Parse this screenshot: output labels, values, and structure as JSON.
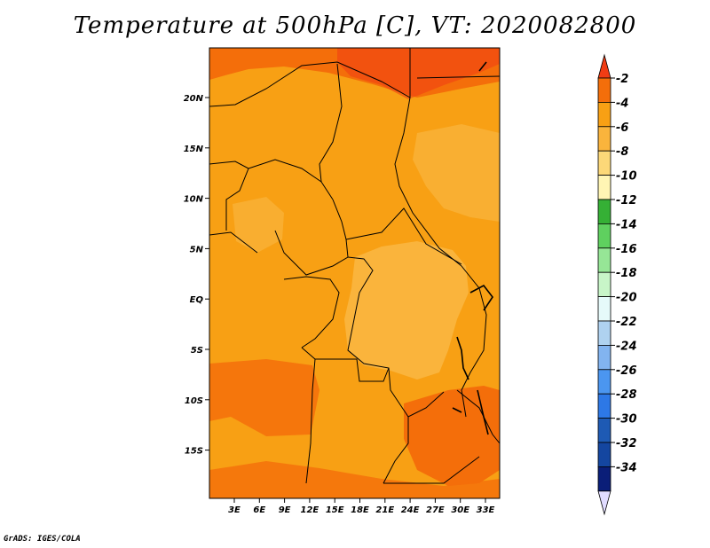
{
  "title": "Temperature at 500hPa [C], VT: 2020082800",
  "credit": "GrADS: IGES/COLA",
  "map": {
    "lat_labels": [
      "20N",
      "15N",
      "10N",
      "5N",
      "EQ",
      "5S",
      "10S",
      "15S"
    ],
    "lon_labels": [
      "3E",
      "6E",
      "9E",
      "12E",
      "15E",
      "18E",
      "21E",
      "24E",
      "27E",
      "30E",
      "33E"
    ],
    "variable": "Temperature at 500hPa",
    "units": "C"
  },
  "colorbar": {
    "labels": [
      "-2",
      "-4",
      "-6",
      "-8",
      "-10",
      "-12",
      "-14",
      "-16",
      "-18",
      "-20",
      "-22",
      "-24",
      "-26",
      "-28",
      "-30",
      "-32",
      "-34"
    ],
    "colors": [
      "#f03c14",
      "#f46e0a",
      "#f8a014",
      "#fab43c",
      "#fcd878",
      "#fff5b4",
      "#35b035",
      "#5fd05f",
      "#96e696",
      "#c8f5c8",
      "#e6fafa",
      "#afd2f0",
      "#82b4f0",
      "#4b96f0",
      "#2d78e6",
      "#1e5ab4",
      "#1446a0",
      "#0a1e78",
      "#e1dcff"
    ]
  }
}
